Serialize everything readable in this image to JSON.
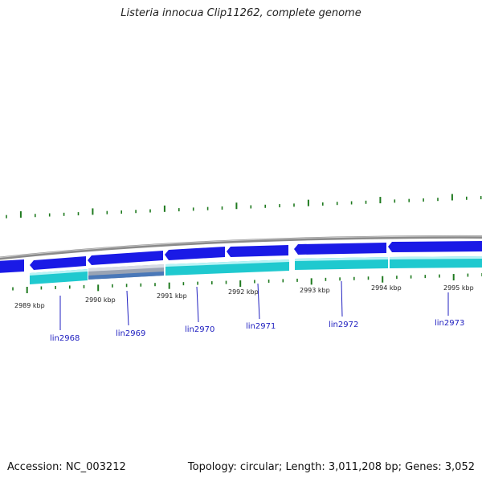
{
  "title": "Listeria innocua Clip11262, complete genome",
  "footer": {
    "accession": "Accession: NC_003212",
    "summary": "Topology: circular; Length: 3,011,208 bp; Genes: 3,052"
  },
  "colors": {
    "backbone": "#8a8a8a",
    "forward_cds": "#1a1ae6",
    "reverse_cds": "#1fc9cf",
    "pseudo_gene": "#9aa4b4",
    "tick": "#1f7a1f",
    "gene_label": "#2020c0"
  },
  "scale_labels": [
    "2989 kbp",
    "2990 kbp",
    "2991 kbp",
    "2992 kbp",
    "2993 kbp",
    "2994 kbp",
    "2995 kbp"
  ],
  "gene_labels": [
    "lin2968",
    "lin2969",
    "lin2970",
    "lin2971",
    "lin2972",
    "lin2973"
  ]
}
